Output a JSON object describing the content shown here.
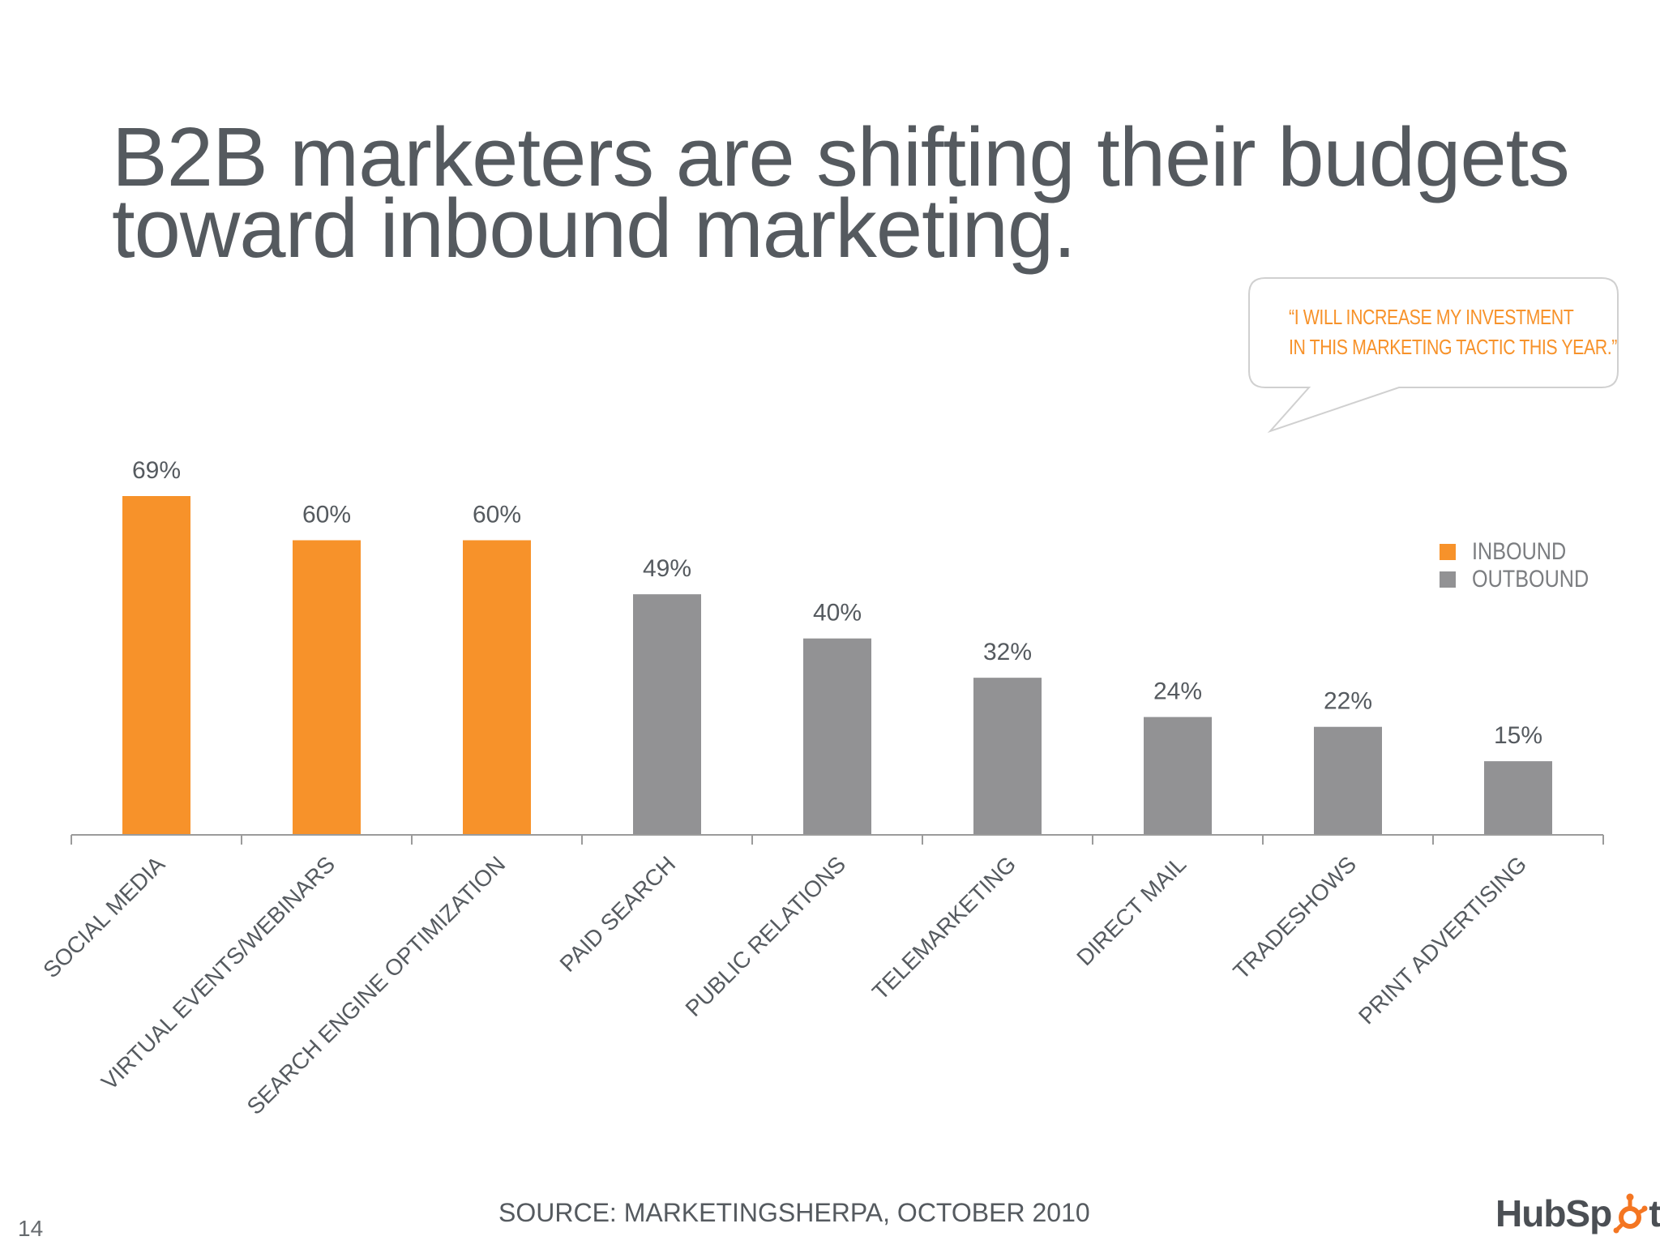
{
  "slide": {
    "title_line1": "B2B marketers are shifting their budgets",
    "title_line2": "toward inbound marketing.",
    "page_number": "14",
    "source": "SOURCE: MARKETINGSHERPA, OCTOBER 2010",
    "logo": {
      "text_before": "HubSp",
      "text_after": "t",
      "icon": "hubspot-sprocket-icon"
    },
    "callout": {
      "line1": "“I WILL INCREASE MY INVESTMENT",
      "line2": "IN THIS MARKETING TACTIC THIS YEAR.”"
    }
  },
  "colors": {
    "inbound": "#f7922a",
    "outbound": "#929294",
    "text": "#555a5f",
    "axis": "#9b9b9b",
    "callout_text": "#f7922a"
  },
  "chart_data": {
    "type": "bar",
    "title": "",
    "xlabel": "",
    "ylabel": "",
    "ylim": [
      0,
      69
    ],
    "grid": false,
    "legend_position": "right",
    "categories": [
      "SOCIAL MEDIA",
      "VIRTUAL EVENTS/WEBINARS",
      "SEARCH ENGINE OPTIMIZATION",
      "PAID SEARCH",
      "PUBLIC RELATIONS",
      "TELEMARKETING",
      "DIRECT MAIL",
      "TRADESHOWS",
      "PRINT ADVERTISING"
    ],
    "values": [
      69,
      60,
      60,
      49,
      40,
      32,
      24,
      22,
      15
    ],
    "data_labels": [
      "69%",
      "60%",
      "60%",
      "49%",
      "40%",
      "32%",
      "24%",
      "22%",
      "15%"
    ],
    "groups": [
      "INBOUND",
      "INBOUND",
      "INBOUND",
      "OUTBOUND",
      "OUTBOUND",
      "OUTBOUND",
      "OUTBOUND",
      "OUTBOUND",
      "OUTBOUND"
    ],
    "legend": [
      {
        "name": "INBOUND",
        "color": "#f7922a"
      },
      {
        "name": "OUTBOUND",
        "color": "#929294"
      }
    ]
  }
}
